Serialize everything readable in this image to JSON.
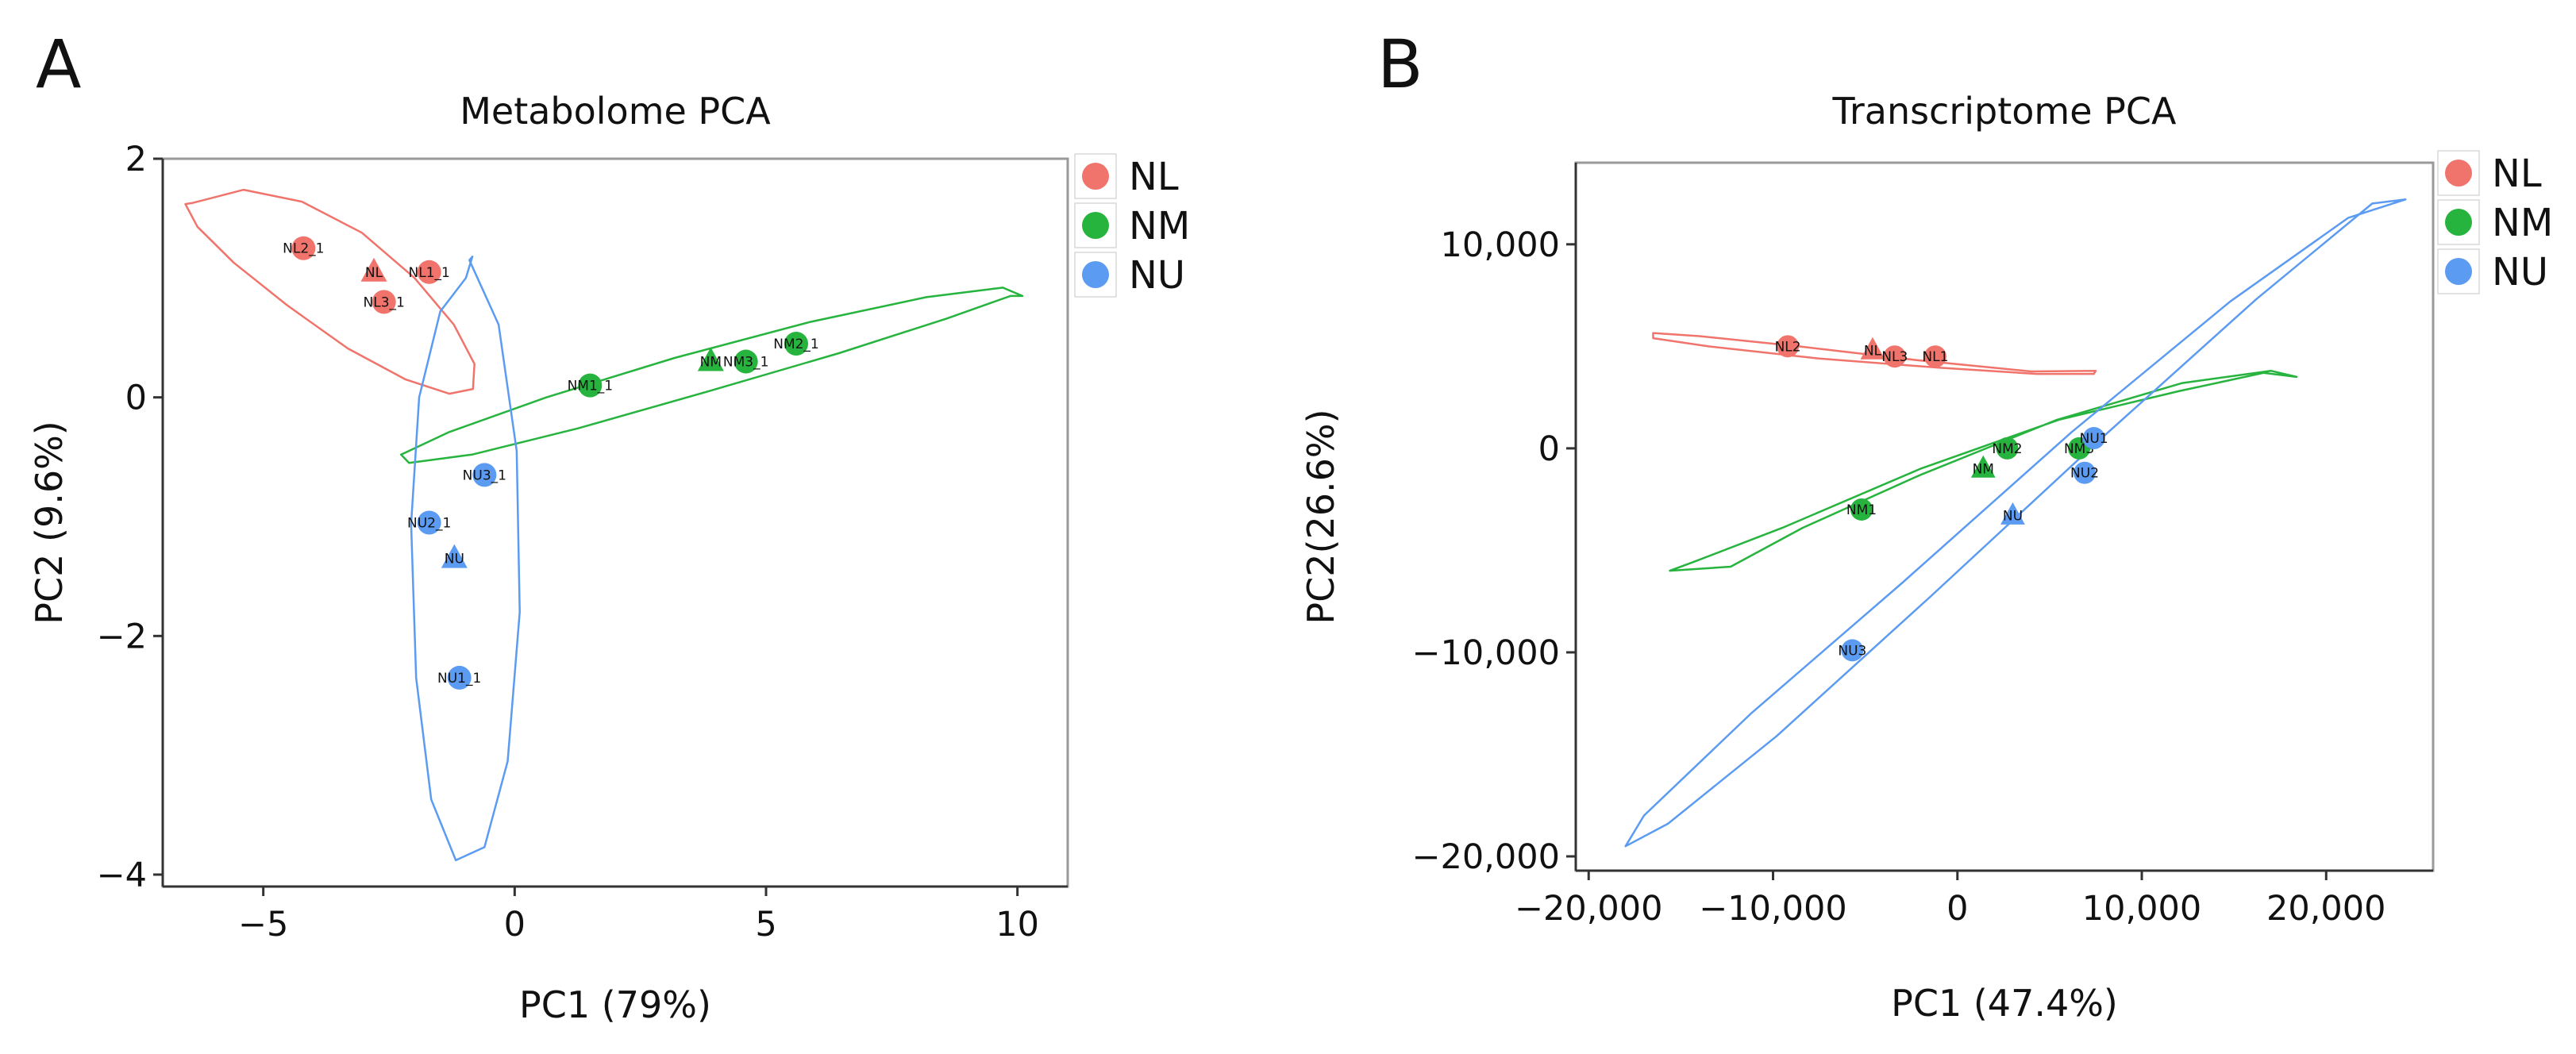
{
  "chart_data": [
    {
      "panel_label": "A",
      "type": "scatter",
      "title": "Metabolome PCA",
      "xlabel": "PC1 (79%)",
      "ylabel": "PC2 (9.6%)",
      "xlim": [
        -7,
        11
      ],
      "ylim": [
        -4.1,
        2.0
      ],
      "xticks": [
        -5,
        0,
        5,
        10
      ],
      "xtick_labels": [
        "−5",
        "0",
        "5",
        "10"
      ],
      "yticks": [
        2,
        0,
        -2,
        -4
      ],
      "ytick_labels": [
        "2",
        "0",
        "−2",
        "−4"
      ],
      "grid": false,
      "legend_position": "right",
      "series": [
        {
          "name": "NL",
          "color": "#F0746B",
          "points": [
            {
              "label": "NL2_1",
              "x": -4.2,
              "y": 1.25,
              "marker": "circle"
            },
            {
              "label": "NL",
              "x": -2.8,
              "y": 1.05,
              "marker": "triangle"
            },
            {
              "label": "NL1_1",
              "x": -1.7,
              "y": 1.05,
              "marker": "circle"
            },
            {
              "label": "NL3_1",
              "x": -2.6,
              "y": 0.8,
              "marker": "circle"
            }
          ],
          "ellipse": [
            [
              -6.4,
              1.63
            ],
            [
              -5.39,
              1.74
            ],
            [
              -4.23,
              1.64
            ],
            [
              -3.04,
              1.38
            ],
            [
              -1.99,
              1.0
            ],
            [
              -1.21,
              0.61
            ],
            [
              -0.8,
              0.28
            ],
            [
              -0.83,
              0.07
            ],
            [
              -1.3,
              0.03
            ],
            [
              -2.17,
              0.15
            ],
            [
              -3.32,
              0.41
            ],
            [
              -4.52,
              0.77
            ],
            [
              -5.59,
              1.13
            ],
            [
              -6.31,
              1.43
            ],
            [
              -6.55,
              1.62
            ]
          ]
        },
        {
          "name": "NM",
          "color": "#27B43E",
          "points": [
            {
              "label": "NM1_1",
              "x": 1.5,
              "y": 0.1,
              "marker": "circle"
            },
            {
              "label": "NM",
              "x": 3.9,
              "y": 0.3,
              "marker": "triangle"
            },
            {
              "label": "NM3_1",
              "x": 4.6,
              "y": 0.3,
              "marker": "circle"
            },
            {
              "label": "NM2_1",
              "x": 5.6,
              "y": 0.45,
              "marker": "circle"
            }
          ],
          "ellipse": [
            [
              10.1,
              0.85
            ],
            [
              9.71,
              0.92
            ],
            [
              8.19,
              0.84
            ],
            [
              5.86,
              0.63
            ],
            [
              3.18,
              0.33
            ],
            [
              0.63,
              0.0
            ],
            [
              -1.3,
              -0.29
            ],
            [
              -2.26,
              -0.48
            ],
            [
              -2.1,
              -0.55
            ],
            [
              -0.85,
              -0.48
            ],
            [
              1.26,
              -0.26
            ],
            [
              3.85,
              0.05
            ],
            [
              6.45,
              0.37
            ],
            [
              8.59,
              0.66
            ],
            [
              9.86,
              0.85
            ]
          ]
        },
        {
          "name": "NU",
          "color": "#5C9BF2",
          "points": [
            {
              "label": "NU3_1",
              "x": -0.6,
              "y": -0.65,
              "marker": "circle"
            },
            {
              "label": "NU2_1",
              "x": -1.7,
              "y": -1.05,
              "marker": "circle"
            },
            {
              "label": "NU",
              "x": -1.2,
              "y": -1.35,
              "marker": "triangle"
            },
            {
              "label": "NU1_1",
              "x": -1.1,
              "y": -2.35,
              "marker": "circle"
            }
          ],
          "ellipse": [
            [
              -0.9,
              1.15
            ],
            [
              -0.32,
              0.61
            ],
            [
              0.04,
              -0.45
            ],
            [
              0.1,
              -1.8
            ],
            [
              -0.14,
              -3.05
            ],
            [
              -0.6,
              -3.77
            ],
            [
              -1.17,
              -3.88
            ],
            [
              -1.66,
              -3.37
            ],
            [
              -1.96,
              -2.35
            ],
            [
              -2.06,
              -1.06
            ],
            [
              -1.9,
              0.0
            ],
            [
              -1.48,
              0.72
            ],
            [
              -0.97,
              1.0
            ],
            [
              -0.84,
              1.18
            ]
          ]
        }
      ]
    },
    {
      "panel_label": "B",
      "type": "scatter",
      "title": "Transcriptome PCA",
      "xlabel": "PC1 (47.4%)",
      "ylabel": "PC2(26.6%)",
      "xlim": [
        -20700,
        25800
      ],
      "ylim": [
        -20700,
        14000
      ],
      "xticks": [
        -20000,
        -10000,
        0,
        10000,
        20000
      ],
      "xtick_labels": [
        "−20,000",
        "−10,000",
        "0",
        "10,000",
        "20,000"
      ],
      "yticks": [
        10000,
        0,
        -10000,
        -20000
      ],
      "ytick_labels": [
        "10,000",
        "0",
        "−10,000",
        "−20,000"
      ],
      "grid": false,
      "legend_position": "right",
      "series": [
        {
          "name": "NL",
          "color": "#F0746B",
          "points": [
            {
              "label": "NL2",
              "x": -9200,
              "y": 5000,
              "marker": "circle"
            },
            {
              "label": "NL",
              "x": -4600,
              "y": 4800,
              "marker": "triangle"
            },
            {
              "label": "NL3",
              "x": -3400,
              "y": 4500,
              "marker": "circle"
            },
            {
              "label": "NL1",
              "x": -1200,
              "y": 4500,
              "marker": "circle"
            }
          ],
          "ellipse": [
            [
              7500,
              3800
            ],
            [
              4000,
              3770
            ],
            [
              -2000,
              4300
            ],
            [
              -8600,
              5000
            ],
            [
              -14000,
              5500
            ],
            [
              -16500,
              5650
            ],
            [
              -16500,
              5400
            ],
            [
              -13500,
              5000
            ],
            [
              -7500,
              4400
            ],
            [
              -1000,
              3950
            ],
            [
              4300,
              3650
            ],
            [
              7400,
              3650
            ],
            [
              7500,
              3800
            ]
          ]
        },
        {
          "name": "NM",
          "color": "#27B43E",
          "points": [
            {
              "label": "NM2",
              "x": 2700,
              "y": 0,
              "marker": "circle"
            },
            {
              "label": "NM",
              "x": 1400,
              "y": -1000,
              "marker": "triangle"
            },
            {
              "label": "NM3",
              "x": 6600,
              "y": 0,
              "marker": "circle"
            },
            {
              "label": "NM1",
              "x": -5200,
              "y": -3000,
              "marker": "circle"
            }
          ],
          "ellipse": [
            [
              18400,
              3500
            ],
            [
              17000,
              3800
            ],
            [
              12200,
              3200
            ],
            [
              5400,
              1400
            ],
            [
              -2000,
              -1300
            ],
            [
              -8400,
              -3900
            ],
            [
              -12300,
              -5800
            ],
            [
              -15600,
              -6000
            ],
            [
              -14400,
              -5600
            ],
            [
              -9500,
              -3900
            ],
            [
              -2000,
              -1000
            ],
            [
              5500,
              1400
            ],
            [
              12000,
              2800
            ],
            [
              16600,
              3700
            ],
            [
              18400,
              3500
            ]
          ]
        },
        {
          "name": "NU",
          "color": "#5C9BF2",
          "points": [
            {
              "label": "NU1",
              "x": 7400,
              "y": 500,
              "marker": "circle"
            },
            {
              "label": "NU2",
              "x": 6900,
              "y": -1200,
              "marker": "circle"
            },
            {
              "label": "NU",
              "x": 3000,
              "y": -3300,
              "marker": "triangle"
            },
            {
              "label": "NU3",
              "x": -5700,
              "y": -9900,
              "marker": "circle"
            }
          ],
          "ellipse": [
            [
              24300,
              12200
            ],
            [
              22500,
              12000
            ],
            [
              16200,
              7300
            ],
            [
              7700,
              400
            ],
            [
              -1500,
              -7300
            ],
            [
              -9800,
              -14100
            ],
            [
              -15700,
              -18400
            ],
            [
              -18000,
              -19500
            ],
            [
              -17000,
              -18000
            ],
            [
              -11200,
              -13000
            ],
            [
              -3000,
              -6600
            ],
            [
              6200,
              800
            ],
            [
              14800,
              7200
            ],
            [
              21200,
              11300
            ],
            [
              24300,
              12200
            ]
          ]
        }
      ]
    }
  ]
}
